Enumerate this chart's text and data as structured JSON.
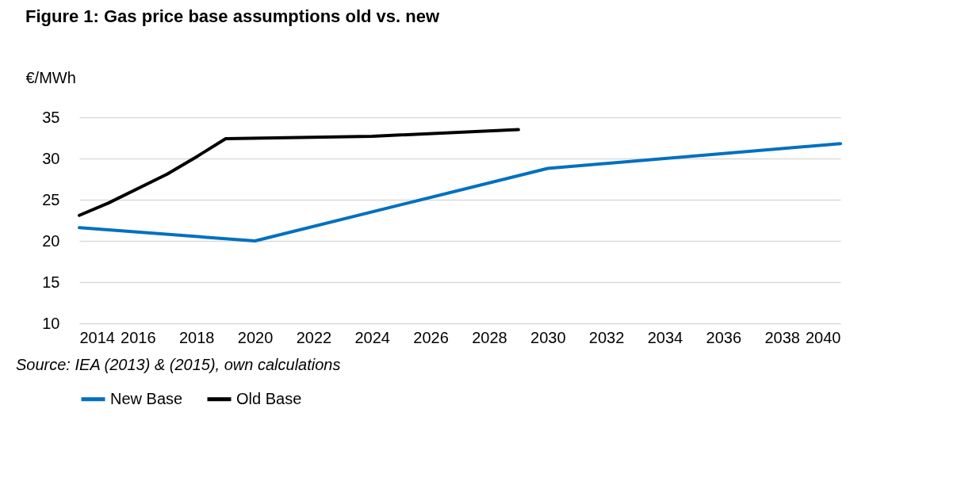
{
  "chart_data": {
    "type": "line",
    "title": "Figure 1: Gas price base assumptions old vs. new",
    "ylabel": "€/MWh",
    "annotations": [
      "Source: IEA (2013) & (2015), own calculations"
    ],
    "series": [
      {
        "name": "New Base",
        "color": "#0070c0",
        "x": [
          2014,
          2020,
          2030,
          2040
        ],
        "values": [
          21.6,
          20.0,
          28.8,
          31.8
        ]
      },
      {
        "name": "Old Base",
        "color": "#000000",
        "x": [
          2014,
          2015,
          2017,
          2018,
          2019,
          2024,
          2029
        ],
        "values": [
          23.1,
          24.6,
          28.1,
          30.2,
          32.4,
          32.7,
          33.5
        ]
      }
    ],
    "xlim": [
      2014,
      2040
    ],
    "xticks": [
      2014,
      2016,
      2018,
      2020,
      2022,
      2024,
      2026,
      2028,
      2030,
      2032,
      2034,
      2036,
      2038,
      2040
    ],
    "ylim": [
      10,
      35
    ],
    "yticks": [
      10,
      15,
      20,
      25,
      30,
      35
    ],
    "grid": "y",
    "legend": "bottom",
    "marker": "none",
    "line_style": "solid"
  }
}
